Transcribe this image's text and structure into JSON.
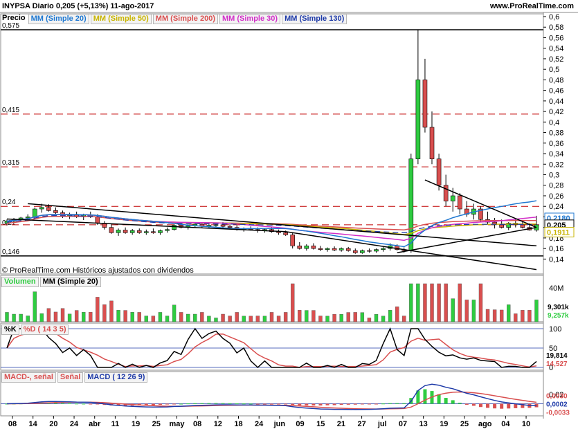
{
  "header": {
    "title": "INYPSA   Diario   0,205 (+5,13%)   11-ago-2017",
    "site": "www.ProRealTime.com"
  },
  "price_legend": {
    "label": "Precio",
    "items": [
      {
        "text": "MM (Simple 20)",
        "color": "#1f78d1"
      },
      {
        "text": "MM (Simple 50)",
        "color": "#c8b400"
      },
      {
        "text": "MM (Simple 200)",
        "color": "#d94f4f"
      },
      {
        "text": "MM (Simple 30)",
        "color": "#d22fc8"
      },
      {
        "text": "MM (Simple 130)",
        "color": "#1e3aa8"
      }
    ]
  },
  "footnote": "© ProRealTime.com  Históricos ajustados con dividendos",
  "volume_legend": {
    "label": "Volumen",
    "item": "MM (Simple 20)"
  },
  "stoch_legend": {
    "label1": "%K",
    "label2": "%D ( 14 3 5)"
  },
  "macd_legend": {
    "label1": "MACD-, señal",
    "label2": "Señal",
    "label3": "MACD ( 12 26 9)"
  },
  "chart_data": {
    "type": "candlestick",
    "panels": {
      "price": {
        "ylim": [
          0.13,
          0.6
        ],
        "ticks": [
          "0,6",
          "0,58",
          "0,56",
          "0,54",
          "0,52",
          "0,5",
          "0,48",
          "0,46",
          "0,44",
          "0,42",
          "0,4",
          "0,38",
          "0,36",
          "0,34",
          "0,32",
          "0,3",
          "0,28",
          "0,26",
          "0,24",
          "0,22",
          "0,2",
          "0,18",
          "0,16",
          "0,14"
        ],
        "hlines": [
          {
            "value": 0.575,
            "label": "0,575",
            "style": "solid"
          },
          {
            "value": 0.415,
            "label": "0,415",
            "style": "dashed"
          },
          {
            "value": 0.315,
            "label": "0,315",
            "style": "dashed"
          },
          {
            "value": 0.24,
            "label": "0,24",
            "style": "dashed"
          },
          {
            "value": 0.146,
            "label": "0,146",
            "style": "solid"
          }
        ],
        "tags": [
          {
            "value": 0.218,
            "label": "0,2180",
            "color": "#1f78d1"
          },
          {
            "value": 0.205,
            "label": "0,205",
            "color": "#000000"
          },
          {
            "value": 0.1911,
            "label": "0,1911",
            "color": "#c8b400"
          }
        ],
        "left_label": {
          "value": 0.21,
          "label": "0,21"
        }
      },
      "volume": {
        "ticks": [
          "40M"
        ],
        "tags": [
          {
            "label": "9,301k",
            "color": "#000000"
          },
          {
            "label": "9,257k",
            "color": "#2ecc40"
          }
        ]
      },
      "stochastic": {
        "ticks": [
          "100",
          "50",
          "0"
        ],
        "tags": [
          {
            "label": "19,814",
            "color": "#000000"
          },
          {
            "label": "14,527",
            "color": "#d94f4f"
          }
        ]
      },
      "macd": {
        "ticks": [
          "0,02",
          "0"
        ],
        "tags": [
          {
            "label": "0,0030",
            "color": "#d94f4f"
          },
          {
            "label": "0,0002",
            "color": "#1e3aa8"
          },
          {
            "label": "-0,0033",
            "color": "#d94f4f"
          }
        ]
      }
    },
    "x_ticks": [
      "08",
      "14",
      "20",
      "24",
      "abr",
      "11",
      "19",
      "25",
      "may",
      "08",
      "12",
      "18",
      "24",
      "jun",
      "09",
      "15",
      "21",
      "27",
      "jul",
      "07",
      "13",
      "19",
      "25",
      "ago",
      "04",
      "10"
    ],
    "ohlc": [
      [
        0.208,
        0.215,
        0.205,
        0.212
      ],
      [
        0.212,
        0.218,
        0.208,
        0.215
      ],
      [
        0.215,
        0.22,
        0.21,
        0.218
      ],
      [
        0.218,
        0.225,
        0.214,
        0.22
      ],
      [
        0.22,
        0.238,
        0.218,
        0.235
      ],
      [
        0.235,
        0.245,
        0.228,
        0.238
      ],
      [
        0.238,
        0.244,
        0.23,
        0.232
      ],
      [
        0.232,
        0.238,
        0.224,
        0.228
      ],
      [
        0.228,
        0.232,
        0.218,
        0.222
      ],
      [
        0.222,
        0.228,
        0.216,
        0.225
      ],
      [
        0.225,
        0.23,
        0.218,
        0.22
      ],
      [
        0.22,
        0.226,
        0.214,
        0.224
      ],
      [
        0.224,
        0.23,
        0.218,
        0.22
      ],
      [
        0.22,
        0.225,
        0.205,
        0.208
      ],
      [
        0.208,
        0.212,
        0.196,
        0.2
      ],
      [
        0.2,
        0.206,
        0.188,
        0.19
      ],
      [
        0.19,
        0.198,
        0.184,
        0.195
      ],
      [
        0.195,
        0.2,
        0.188,
        0.19
      ],
      [
        0.19,
        0.197,
        0.186,
        0.194
      ],
      [
        0.194,
        0.198,
        0.188,
        0.19
      ],
      [
        0.19,
        0.196,
        0.186,
        0.192
      ],
      [
        0.192,
        0.198,
        0.188,
        0.19
      ],
      [
        0.19,
        0.196,
        0.186,
        0.194
      ],
      [
        0.194,
        0.2,
        0.19,
        0.196
      ],
      [
        0.196,
        0.206,
        0.194,
        0.204
      ],
      [
        0.204,
        0.208,
        0.198,
        0.2
      ],
      [
        0.2,
        0.206,
        0.196,
        0.203
      ],
      [
        0.203,
        0.21,
        0.2,
        0.206
      ],
      [
        0.206,
        0.21,
        0.2,
        0.202
      ],
      [
        0.202,
        0.206,
        0.198,
        0.204
      ],
      [
        0.204,
        0.208,
        0.2,
        0.205
      ],
      [
        0.205,
        0.21,
        0.2,
        0.202
      ],
      [
        0.202,
        0.206,
        0.196,
        0.2
      ],
      [
        0.2,
        0.204,
        0.194,
        0.196
      ],
      [
        0.196,
        0.2,
        0.192,
        0.198
      ],
      [
        0.198,
        0.202,
        0.194,
        0.196
      ],
      [
        0.196,
        0.2,
        0.19,
        0.194
      ],
      [
        0.194,
        0.198,
        0.19,
        0.196
      ],
      [
        0.196,
        0.2,
        0.19,
        0.192
      ],
      [
        0.192,
        0.196,
        0.186,
        0.19
      ],
      [
        0.19,
        0.194,
        0.184,
        0.186
      ],
      [
        0.186,
        0.19,
        0.16,
        0.165
      ],
      [
        0.165,
        0.172,
        0.158,
        0.16
      ],
      [
        0.16,
        0.168,
        0.156,
        0.165
      ],
      [
        0.165,
        0.17,
        0.158,
        0.16
      ],
      [
        0.16,
        0.165,
        0.155,
        0.158
      ],
      [
        0.158,
        0.162,
        0.154,
        0.16
      ],
      [
        0.16,
        0.164,
        0.155,
        0.157
      ],
      [
        0.157,
        0.162,
        0.154,
        0.16
      ],
      [
        0.16,
        0.163,
        0.154,
        0.156
      ],
      [
        0.156,
        0.16,
        0.15,
        0.152
      ],
      [
        0.152,
        0.158,
        0.15,
        0.156
      ],
      [
        0.156,
        0.16,
        0.152,
        0.155
      ],
      [
        0.155,
        0.16,
        0.152,
        0.158
      ],
      [
        0.158,
        0.163,
        0.154,
        0.16
      ],
      [
        0.16,
        0.17,
        0.156,
        0.165
      ],
      [
        0.165,
        0.168,
        0.156,
        0.158
      ],
      [
        0.158,
        0.162,
        0.152,
        0.156
      ],
      [
        0.156,
        0.34,
        0.152,
        0.33
      ],
      [
        0.33,
        0.575,
        0.32,
        0.48
      ],
      [
        0.48,
        0.52,
        0.38,
        0.39
      ],
      [
        0.39,
        0.42,
        0.32,
        0.33
      ],
      [
        0.33,
        0.34,
        0.27,
        0.28
      ],
      [
        0.28,
        0.3,
        0.24,
        0.25
      ],
      [
        0.25,
        0.275,
        0.23,
        0.26
      ],
      [
        0.26,
        0.265,
        0.225,
        0.235
      ],
      [
        0.235,
        0.25,
        0.22,
        0.225
      ],
      [
        0.225,
        0.245,
        0.215,
        0.235
      ],
      [
        0.235,
        0.24,
        0.21,
        0.215
      ],
      [
        0.215,
        0.23,
        0.205,
        0.21
      ],
      [
        0.21,
        0.218,
        0.198,
        0.205
      ],
      [
        0.205,
        0.215,
        0.198,
        0.2
      ],
      [
        0.2,
        0.21,
        0.195,
        0.208
      ],
      [
        0.208,
        0.215,
        0.2,
        0.205
      ],
      [
        0.205,
        0.212,
        0.198,
        0.2
      ],
      [
        0.2,
        0.208,
        0.194,
        0.195
      ],
      [
        0.195,
        0.222,
        0.192,
        0.205
      ]
    ]
  }
}
